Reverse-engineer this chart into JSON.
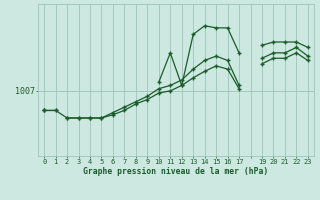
{
  "title": "Graphe pression niveau de la mer (hPa)",
  "ylabel_text": "1007",
  "ylabel_value": 1007,
  "bg_color": "#cce8e0",
  "grid_color": "#9dc4ba",
  "line_color": "#1a5c2a",
  "marker_color": "#1a5c2a",
  "ylim": [
    1001.0,
    1015.0
  ],
  "ytick_val": 1007,
  "series_upper": [
    1005.2,
    1005.2,
    null,
    null,
    null,
    null,
    null,
    null,
    null,
    null,
    1007.8,
    1010.5,
    1007.5,
    1012.2,
    1013.0,
    1012.8,
    1012.8,
    1010.5,
    null,
    1011.2,
    1011.5,
    1011.5,
    1011.5,
    1011.0
  ],
  "series_mid": [
    1005.2,
    null,
    1004.5,
    1004.5,
    1004.5,
    1004.5,
    1005.0,
    1005.5,
    1006.0,
    1006.5,
    1007.2,
    1007.5,
    1008.0,
    1009.0,
    1009.8,
    1010.2,
    1009.8,
    1007.5,
    null,
    1010.0,
    1010.5,
    1010.5,
    1011.0,
    1010.2
  ],
  "series_lower": [
    1005.2,
    1005.2,
    1004.5,
    1004.5,
    1004.5,
    1004.5,
    1004.8,
    1005.2,
    1005.8,
    1006.2,
    1006.8,
    1007.0,
    1007.5,
    1008.2,
    1008.8,
    1009.3,
    1009.0,
    1007.2,
    null,
    1009.5,
    1010.0,
    1010.0,
    1010.5,
    1009.8
  ]
}
